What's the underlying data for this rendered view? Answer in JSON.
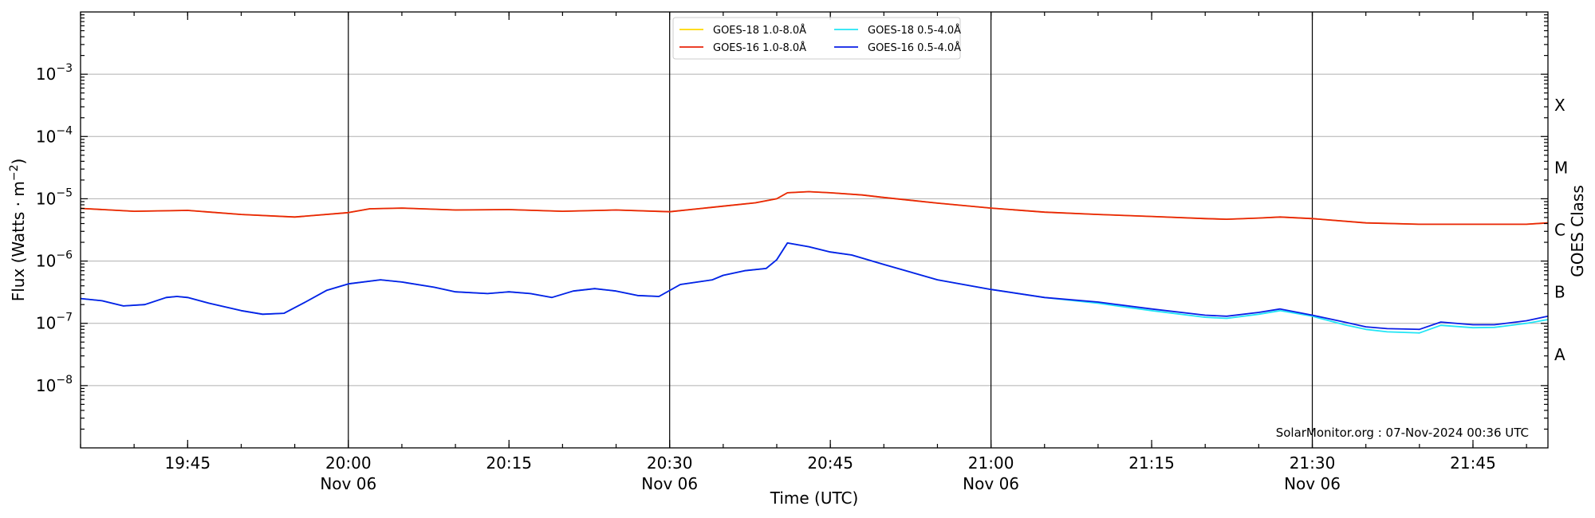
{
  "chart_data": {
    "type": "line",
    "title": "",
    "xlabel": "Time (UTC)",
    "ylabel": "Flux (Watts · m⁻²)",
    "ylabel_parts": {
      "base": "Flux (Watts · m",
      "exp": "−2",
      "close": ")"
    },
    "y2label": "GOES Class",
    "yscale": "log",
    "ylim": [
      1e-09,
      0.01
    ],
    "xlim": [
      "19:35",
      "21:52"
    ],
    "y_ticks": [
      {
        "value": 1e-08,
        "base": "10",
        "exp": "−8"
      },
      {
        "value": 1e-07,
        "base": "10",
        "exp": "−7"
      },
      {
        "value": 1e-06,
        "base": "10",
        "exp": "−6"
      },
      {
        "value": 1e-05,
        "base": "10",
        "exp": "−5"
      },
      {
        "value": 0.0001,
        "base": "10",
        "exp": "−4"
      },
      {
        "value": 0.001,
        "base": "10",
        "exp": "−3"
      }
    ],
    "class_labels": [
      {
        "label": "A",
        "value": 3.16e-08
      },
      {
        "label": "B",
        "value": 3.16e-07
      },
      {
        "label": "C",
        "value": 3.16e-06
      },
      {
        "label": "M",
        "value": 3.16e-05
      },
      {
        "label": "X",
        "value": 0.000316
      }
    ],
    "x_ticks": [
      {
        "time": "19:45",
        "label": "19:45",
        "sublabel": ""
      },
      {
        "time": "20:00",
        "label": "20:00",
        "sublabel": "Nov 06"
      },
      {
        "time": "20:15",
        "label": "20:15",
        "sublabel": ""
      },
      {
        "time": "20:30",
        "label": "20:30",
        "sublabel": "Nov 06"
      },
      {
        "time": "20:45",
        "label": "20:45",
        "sublabel": ""
      },
      {
        "time": "21:00",
        "label": "21:00",
        "sublabel": "Nov 06"
      },
      {
        "time": "21:15",
        "label": "21:15",
        "sublabel": ""
      },
      {
        "time": "21:30",
        "label": "21:30",
        "sublabel": "Nov 06"
      },
      {
        "time": "21:45",
        "label": "21:45",
        "sublabel": ""
      }
    ],
    "vertical_lines": [
      "20:00",
      "20:30",
      "21:00",
      "21:30"
    ],
    "grid": "horizontal",
    "legend_position": "top-center",
    "annotation": "SolarMonitor.org : 07-Nov-2024 00:36 UTC",
    "series": [
      {
        "name": "GOES-18 1.0-8.0Å",
        "color": "#ffd700",
        "x": [
          "19:35",
          "19:40",
          "19:45",
          "19:50",
          "19:55",
          "20:00",
          "20:02",
          "20:05",
          "20:10",
          "20:15",
          "20:20",
          "20:25",
          "20:30",
          "20:33",
          "20:35",
          "20:38",
          "20:40",
          "20:41",
          "20:43",
          "20:45",
          "20:48",
          "20:50",
          "20:55",
          "21:00",
          "21:05",
          "21:10",
          "21:15",
          "21:20",
          "21:22",
          "21:25",
          "21:27",
          "21:30",
          "21:35",
          "21:40",
          "21:45",
          "21:50",
          "21:52"
        ],
        "values": [
          7e-06,
          6.3e-06,
          6.5e-06,
          5.6e-06,
          5.1e-06,
          6e-06,
          6.9e-06,
          7.1e-06,
          6.6e-06,
          6.7e-06,
          6.3e-06,
          6.6e-06,
          6.2e-06,
          7e-06,
          7.6e-06,
          8.6e-06,
          1e-05,
          1.25e-05,
          1.3e-05,
          1.25e-05,
          1.15e-05,
          1.05e-05,
          8.5e-06,
          7.1e-06,
          6.1e-06,
          5.6e-06,
          5.2e-06,
          4.8e-06,
          4.7e-06,
          4.9e-06,
          5.1e-06,
          4.8e-06,
          4.1e-06,
          3.9e-06,
          3.9e-06,
          3.9e-06,
          4.1e-06
        ]
      },
      {
        "name": "GOES-16 1.0-8.0Å",
        "color": "#e8250c",
        "x": [
          "19:35",
          "19:40",
          "19:45",
          "19:50",
          "19:55",
          "20:00",
          "20:02",
          "20:05",
          "20:10",
          "20:15",
          "20:20",
          "20:25",
          "20:30",
          "20:33",
          "20:35",
          "20:38",
          "20:40",
          "20:41",
          "20:43",
          "20:45",
          "20:48",
          "20:50",
          "20:55",
          "21:00",
          "21:05",
          "21:10",
          "21:15",
          "21:20",
          "21:22",
          "21:25",
          "21:27",
          "21:30",
          "21:35",
          "21:40",
          "21:45",
          "21:50",
          "21:52"
        ],
        "values": [
          7e-06,
          6.3e-06,
          6.5e-06,
          5.6e-06,
          5.1e-06,
          6e-06,
          6.9e-06,
          7.1e-06,
          6.6e-06,
          6.7e-06,
          6.3e-06,
          6.6e-06,
          6.2e-06,
          7e-06,
          7.6e-06,
          8.6e-06,
          1e-05,
          1.25e-05,
          1.3e-05,
          1.25e-05,
          1.15e-05,
          1.05e-05,
          8.5e-06,
          7.1e-06,
          6.1e-06,
          5.6e-06,
          5.2e-06,
          4.8e-06,
          4.7e-06,
          4.9e-06,
          5.1e-06,
          4.8e-06,
          4.1e-06,
          3.9e-06,
          3.9e-06,
          3.9e-06,
          4.1e-06
        ]
      },
      {
        "name": "GOES-18 0.5-4.0Å",
        "color": "#22e5f5",
        "x": [
          "19:35",
          "19:37",
          "19:39",
          "19:41",
          "19:43",
          "19:44",
          "19:45",
          "19:47",
          "19:50",
          "19:52",
          "19:54",
          "19:56",
          "19:58",
          "20:00",
          "20:03",
          "20:05",
          "20:08",
          "20:10",
          "20:13",
          "20:15",
          "20:17",
          "20:19",
          "20:21",
          "20:23",
          "20:25",
          "20:27",
          "20:29",
          "20:31",
          "20:34",
          "20:35",
          "20:37",
          "20:39",
          "20:40",
          "20:41",
          "20:43",
          "20:45",
          "20:47",
          "20:50",
          "20:55",
          "21:00",
          "21:05",
          "21:10",
          "21:15",
          "21:20",
          "21:22",
          "21:25",
          "21:27",
          "21:30",
          "21:33",
          "21:35",
          "21:37",
          "21:40",
          "21:42",
          "21:45",
          "21:47",
          "21:50",
          "21:52"
        ],
        "values": [
          2.5e-07,
          2.3e-07,
          1.9e-07,
          2e-07,
          2.6e-07,
          2.7e-07,
          2.6e-07,
          2.1e-07,
          1.6e-07,
          1.4e-07,
          1.45e-07,
          2.2e-07,
          3.4e-07,
          4.3e-07,
          5e-07,
          4.6e-07,
          3.8e-07,
          3.2e-07,
          3e-07,
          3.2e-07,
          3e-07,
          2.6e-07,
          3.3e-07,
          3.6e-07,
          3.3e-07,
          2.8e-07,
          2.7e-07,
          4.2e-07,
          5e-07,
          5.9e-07,
          7e-07,
          7.6e-07,
          1.05e-06,
          1.95e-06,
          1.7e-06,
          1.4e-06,
          1.25e-06,
          8.8e-07,
          5e-07,
          3.5e-07,
          2.6e-07,
          2.1e-07,
          1.6e-07,
          1.25e-07,
          1.2e-07,
          1.4e-07,
          1.6e-07,
          1.3e-07,
          9.5e-08,
          8e-08,
          7.3e-08,
          7e-08,
          9.3e-08,
          8.5e-08,
          8.6e-08,
          1e-07,
          1.15e-07
        ]
      },
      {
        "name": "GOES-16 0.5-4.0Å",
        "color": "#0a1ee6",
        "x": [
          "19:35",
          "19:37",
          "19:39",
          "19:41",
          "19:43",
          "19:44",
          "19:45",
          "19:47",
          "19:50",
          "19:52",
          "19:54",
          "19:56",
          "19:58",
          "20:00",
          "20:03",
          "20:05",
          "20:08",
          "20:10",
          "20:13",
          "20:15",
          "20:17",
          "20:19",
          "20:21",
          "20:23",
          "20:25",
          "20:27",
          "20:29",
          "20:31",
          "20:34",
          "20:35",
          "20:37",
          "20:39",
          "20:40",
          "20:41",
          "20:43",
          "20:45",
          "20:47",
          "20:50",
          "20:55",
          "21:00",
          "21:05",
          "21:10",
          "21:15",
          "21:20",
          "21:22",
          "21:25",
          "21:27",
          "21:30",
          "21:33",
          "21:35",
          "21:37",
          "21:40",
          "21:42",
          "21:45",
          "21:47",
          "21:50",
          "21:52"
        ],
        "values": [
          2.5e-07,
          2.3e-07,
          1.9e-07,
          2e-07,
          2.6e-07,
          2.7e-07,
          2.6e-07,
          2.1e-07,
          1.6e-07,
          1.4e-07,
          1.45e-07,
          2.2e-07,
          3.4e-07,
          4.3e-07,
          5e-07,
          4.6e-07,
          3.8e-07,
          3.2e-07,
          3e-07,
          3.2e-07,
          3e-07,
          2.6e-07,
          3.3e-07,
          3.6e-07,
          3.3e-07,
          2.8e-07,
          2.7e-07,
          4.2e-07,
          5e-07,
          5.9e-07,
          7e-07,
          7.6e-07,
          1.05e-06,
          1.95e-06,
          1.7e-06,
          1.4e-06,
          1.25e-06,
          8.8e-07,
          5e-07,
          3.5e-07,
          2.6e-07,
          2.2e-07,
          1.7e-07,
          1.35e-07,
          1.3e-07,
          1.5e-07,
          1.7e-07,
          1.35e-07,
          1.05e-07,
          8.8e-08,
          8.2e-08,
          8e-08,
          1.05e-07,
          9.5e-08,
          9.5e-08,
          1.1e-07,
          1.3e-07
        ]
      }
    ]
  }
}
